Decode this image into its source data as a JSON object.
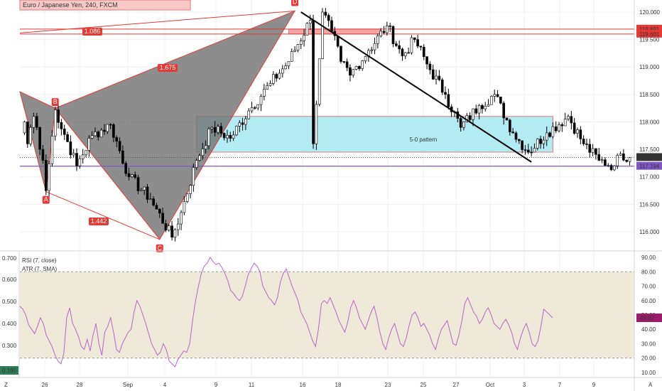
{
  "chart_data": {
    "type": "candlestick",
    "title": "Euro / Japanese Yen, 240, FXCM",
    "colors": {
      "grid": "#eef0f3",
      "up": "#ffffff",
      "down": "#000000",
      "wick": "#000000",
      "harmonic": "#707070",
      "harmonicLine": "#e53935",
      "zone": "#b2ebf2",
      "zoneBorder": "#e57373",
      "purple": "#7e57c2",
      "priceTag": "#333333",
      "rsiLine": "#b565c9",
      "rsiBand": "#efe9d9",
      "rsiTag": "#9c1c6b"
    },
    "price_axis": {
      "ticks": [
        "120.000",
        "119.500",
        "119.000",
        "118.500",
        "118.000",
        "117.500",
        "117.000",
        "116.500",
        "116.000"
      ],
      "range": [
        115.65,
        120.22
      ]
    },
    "time_axis": {
      "ticks": [
        "26",
        "28",
        "Sep",
        "4",
        "9",
        "11",
        "16",
        "18",
        "23",
        "25",
        "27",
        "Oct",
        "3",
        "7",
        "9"
      ]
    },
    "price_tags": [
      {
        "text": "119.691",
        "value": 119.691,
        "color": "#e53935"
      },
      {
        "text": "119.601",
        "value": 119.601,
        "color": "#e53935"
      },
      {
        "text": "117.353",
        "value": 117.353,
        "color": "#333333"
      },
      {
        "text": "117.194",
        "value": 117.194,
        "color": "#7e57c2"
      }
    ],
    "harmonic_points": [
      {
        "label": "B",
        "bar": 11,
        "price": 118.25
      },
      {
        "label": "A",
        "bar": 8,
        "price": 116.73
      },
      {
        "label": "C",
        "bar": 45,
        "price": 115.86
      },
      {
        "label": "D",
        "bar": 89,
        "price": 120.02
      }
    ],
    "harmonic_ratios": [
      "1.086",
      "1.675",
      "1.442"
    ],
    "zone_label": "5-0 pattern",
    "zone": {
      "from_bar": 57,
      "to_bar": 173,
      "top": 118.1,
      "bottom": 117.45
    },
    "top_zone": {
      "from_bar": 87,
      "to_bar": 117,
      "top": 119.69,
      "bottom": 119.6
    },
    "trendline": {
      "from": {
        "bar": 91,
        "price": 120.0
      },
      "to": {
        "bar": 166,
        "price": 117.27
      }
    },
    "pre_bars": [
      117.8,
      118.0,
      117.6,
      117.9,
      118.1,
      117.9,
      117.5,
      117.3
    ],
    "legs": [
      {
        "to": 116.75,
        "bars": 1
      },
      {
        "to": 118.22,
        "bars": 3
      },
      {
        "to": 117.2,
        "bars": 7
      },
      {
        "to": 117.75,
        "bars": 5
      },
      {
        "to": 117.95,
        "bars": 6
      },
      {
        "to": 117.0,
        "bars": 6
      },
      {
        "to": 116.6,
        "bars": 7
      },
      {
        "to": 115.9,
        "bars": 7
      },
      {
        "to": 116.35,
        "bars": 3
      },
      {
        "to": 117.3,
        "bars": 5
      },
      {
        "to": 117.9,
        "bars": 5
      },
      {
        "to": 117.7,
        "bars": 6
      },
      {
        "to": 118.2,
        "bars": 6
      },
      {
        "to": 118.7,
        "bars": 7
      },
      {
        "to": 119.1,
        "bars": 6
      },
      {
        "to": 119.85,
        "bars": 7
      },
      {
        "to": 117.6,
        "bars": 1
      },
      {
        "to": 120.0,
        "bars": 3
      },
      {
        "to": 119.65,
        "bars": 3
      },
      {
        "to": 119.1,
        "bars": 3
      },
      {
        "to": 118.85,
        "bars": 3
      },
      {
        "to": 119.3,
        "bars": 6
      },
      {
        "to": 119.75,
        "bars": 6
      },
      {
        "to": 119.2,
        "bars": 5
      },
      {
        "to": 119.5,
        "bars": 4
      },
      {
        "to": 118.95,
        "bars": 5
      },
      {
        "to": 118.5,
        "bars": 5
      },
      {
        "to": 117.9,
        "bars": 5
      },
      {
        "to": 118.3,
        "bars": 6
      },
      {
        "to": 118.5,
        "bars": 5
      },
      {
        "to": 117.8,
        "bars": 6
      },
      {
        "to": 117.45,
        "bars": 5
      },
      {
        "to": 117.8,
        "bars": 6
      },
      {
        "to": 118.1,
        "bars": 7
      },
      {
        "to": 117.6,
        "bars": 5
      },
      {
        "to": 117.3,
        "bars": 5
      },
      {
        "to": 117.2,
        "bars": 5
      },
      {
        "to": 117.42,
        "bars": 2
      },
      {
        "to": 117.35,
        "bars": 3
      }
    ],
    "rsi": {
      "label1": "RSI (7, close)",
      "label2": "ATR (7, SMA)",
      "left_ticks": [
        "0.700",
        "0.600",
        "0.500",
        "0.400",
        "0.300"
      ],
      "left_badge": "0.190",
      "right_ticks": [
        "90.00",
        "80.00",
        "70.00",
        "60.00",
        "50.00",
        "40.00",
        "30.00",
        "20.00",
        "10.00"
      ],
      "badge": "48.02",
      "band": [
        20,
        80
      ],
      "range": [
        8,
        92
      ],
      "values": [
        56,
        54,
        50,
        43,
        40,
        37,
        42,
        48,
        44,
        36,
        32,
        28,
        22,
        18,
        16,
        23,
        48,
        55,
        44,
        40,
        35,
        28,
        26,
        33,
        25,
        36,
        44,
        30,
        22,
        38,
        42,
        48,
        38,
        26,
        24,
        30,
        34,
        38,
        40,
        52,
        60,
        56,
        50,
        44,
        37,
        30,
        26,
        22,
        24,
        30,
        26,
        18,
        16,
        14,
        19,
        22,
        25,
        24,
        30,
        46,
        60,
        70,
        79,
        84,
        86,
        90,
        87,
        85,
        86,
        83,
        79,
        74,
        67,
        65,
        62,
        60,
        63,
        70,
        78,
        82,
        86,
        84,
        80,
        70,
        66,
        62,
        60,
        57,
        62,
        73,
        79,
        82,
        76,
        70,
        65,
        60,
        52,
        48,
        44,
        38,
        32,
        28,
        40,
        58,
        60,
        58,
        62,
        57,
        52,
        46,
        42,
        38,
        45,
        55,
        60,
        55,
        48,
        44,
        40,
        46,
        52,
        56,
        48,
        38,
        30,
        26,
        34,
        40,
        44,
        37,
        30,
        28,
        34,
        43,
        50,
        52,
        48,
        42,
        44,
        40,
        36,
        30,
        26,
        34,
        40,
        43,
        46,
        38,
        30,
        29,
        36,
        46,
        58,
        62,
        57,
        52,
        49,
        44,
        47,
        52,
        55,
        50,
        44,
        42,
        40,
        44,
        47,
        43,
        38,
        30,
        26,
        34,
        40,
        44,
        38,
        30,
        28,
        32,
        42,
        54,
        52,
        50,
        48
      ]
    }
  }
}
